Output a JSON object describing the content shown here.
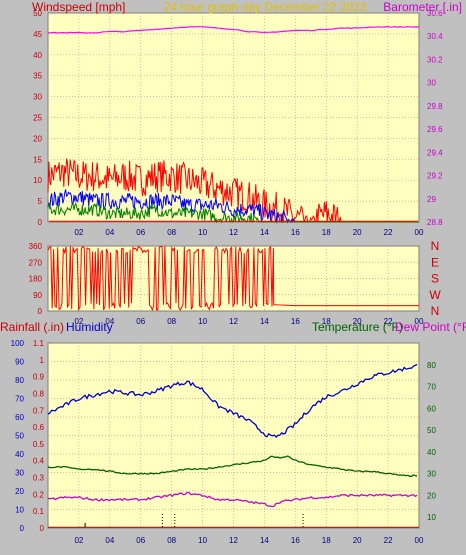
{
  "header": {
    "left": "Windspeed [mph]",
    "center": "24 hour graph day   December 22 2023",
    "right": "Barometer [.in]"
  },
  "colors": {
    "background": "#c0c0c0",
    "plot_bg": "#ffffc0",
    "grid": "#ff9090",
    "wind_gust": "#ff0000",
    "wind_avg": "#0000ff",
    "wind_low": "#008000",
    "barometer": "#ff00ff",
    "direction": "#ff0000",
    "humidity": "#0000cc",
    "temperature": "#006400",
    "dew_point": "#cc00cc",
    "rain": "#cc0000"
  },
  "chart_data": [
    {
      "type": "line",
      "title": "24 hour graph day   December 22 2023",
      "xlabel": "",
      "ylabel": "Windspeed [mph]",
      "y2label": "Barometer [.in]",
      "x_ticks": [
        "02",
        "04",
        "06",
        "08",
        "10",
        "12",
        "14",
        "16",
        "18",
        "20",
        "22",
        "00"
      ],
      "ylim": [
        0,
        50
      ],
      "y_ticks": [
        0,
        5,
        10,
        15,
        20,
        25,
        30,
        35,
        40,
        45,
        50
      ],
      "y2lim": [
        28.8,
        30.6
      ],
      "y2_ticks": [
        "28.8",
        "29",
        "29.2",
        "29.4",
        "29.6",
        "29.8",
        "30",
        "30.2",
        "30.4",
        "30.6"
      ],
      "series": [
        {
          "name": "Barometer",
          "axis": "right",
          "x": [
            0,
            1,
            2,
            3,
            4,
            5,
            6,
            7,
            8,
            9,
            10,
            11,
            12,
            13,
            14,
            15,
            16,
            17,
            18,
            19,
            20,
            21,
            22,
            23,
            24
          ],
          "values": [
            30.43,
            30.43,
            30.43,
            30.43,
            30.44,
            30.44,
            30.45,
            30.46,
            30.47,
            30.48,
            30.48,
            30.47,
            30.46,
            30.44,
            30.43,
            30.44,
            30.45,
            30.45,
            30.46,
            30.47,
            30.47,
            30.48,
            30.48,
            30.48,
            30.48
          ]
        },
        {
          "name": "Wind gust",
          "axis": "left",
          "x": [
            0,
            1,
            2,
            3,
            4,
            5,
            6,
            7,
            8,
            9,
            10,
            11,
            12,
            13,
            14,
            15,
            16,
            17,
            18,
            19,
            20,
            21,
            22,
            23,
            24
          ],
          "values": [
            11,
            12,
            11,
            11,
            10,
            11,
            10,
            11,
            11,
            10,
            9,
            8,
            7,
            6,
            4,
            3,
            1,
            0,
            2,
            0,
            0,
            0,
            0,
            0,
            0
          ]
        },
        {
          "name": "Wind average",
          "axis": "left",
          "x": [
            0,
            1,
            2,
            3,
            4,
            5,
            6,
            7,
            8,
            9,
            10,
            11,
            12,
            13,
            14,
            15,
            16,
            17,
            18,
            19,
            20,
            21,
            22,
            23,
            24
          ],
          "values": [
            5,
            6,
            6,
            5,
            5,
            5,
            5,
            5,
            5,
            4,
            4,
            4,
            3,
            3,
            2,
            1,
            0,
            0,
            0,
            0,
            0,
            0,
            0,
            0,
            0
          ]
        },
        {
          "name": "Wind low",
          "axis": "left",
          "x": [
            0,
            1,
            2,
            3,
            4,
            5,
            6,
            7,
            8,
            9,
            10,
            11,
            12,
            13,
            14,
            15,
            16,
            17,
            18,
            19,
            20,
            21,
            22,
            23,
            24
          ],
          "values": [
            3,
            3,
            3,
            3,
            2,
            2,
            2,
            3,
            2,
            2,
            2,
            1,
            1,
            1,
            0,
            0,
            0,
            0,
            0,
            0,
            0,
            0,
            0,
            0,
            0
          ]
        }
      ]
    },
    {
      "type": "line",
      "ylim": [
        0,
        360
      ],
      "y_ticks": [
        0,
        90,
        180,
        270,
        360
      ],
      "y2_ticks": [
        "N",
        "W",
        "S",
        "E",
        "N"
      ],
      "x_ticks": [
        "02",
        "04",
        "06",
        "08",
        "10",
        "12",
        "14",
        "16",
        "18",
        "20",
        "22",
        "00"
      ],
      "series": [
        {
          "name": "Wind direction",
          "x": [
            0,
            0.5,
            1,
            1.5,
            2,
            2.5,
            3,
            3.5,
            4,
            4.5,
            5,
            5.5,
            6,
            6.5,
            7,
            7.5,
            8,
            8.5,
            9,
            9.5,
            10,
            10.5,
            11,
            11.5,
            12,
            12.5,
            13,
            13.5,
            14,
            14.3,
            14.6,
            16,
            24
          ],
          "values": [
            20,
            355,
            15,
            350,
            25,
            345,
            10,
            360,
            30,
            340,
            20,
            355,
            15,
            350,
            25,
            345,
            10,
            360,
            30,
            340,
            20,
            355,
            15,
            350,
            25,
            345,
            10,
            360,
            30,
            355,
            35,
            30,
            30
          ]
        }
      ]
    },
    {
      "type": "line",
      "ylabel": "Rainfall (.in)",
      "ylabel2": "Humidity",
      "y2label": "Temperature (°F)",
      "y2label2": "Dew Point (°F)",
      "x_ticks": [
        "02",
        "04",
        "06",
        "08",
        "10",
        "12",
        "14",
        "16",
        "18",
        "20",
        "22",
        "00"
      ],
      "rain_lim": [
        0,
        1.1
      ],
      "rain_ticks": [
        "0",
        "0.1",
        "0.2",
        "0.3",
        "0.4",
        "0.5",
        "0.6",
        "0.7",
        "0.8",
        "0.9",
        "1",
        "1.1"
      ],
      "humidity_lim": [
        0,
        100
      ],
      "humidity_ticks": [
        "0",
        "10",
        "20",
        "30",
        "40",
        "50",
        "60",
        "70",
        "80",
        "90",
        "100"
      ],
      "temp_lim": [
        5,
        90
      ],
      "temp_ticks": [
        "10",
        "20",
        "30",
        "40",
        "50",
        "60",
        "70",
        "80"
      ],
      "series": [
        {
          "name": "Humidity",
          "axis": "humidity",
          "x": [
            0,
            1,
            2,
            3,
            4,
            5,
            6,
            7,
            8,
            9,
            10,
            11,
            12,
            13,
            14,
            14.5,
            15,
            16,
            17,
            18,
            19,
            20,
            21,
            22,
            23,
            24
          ],
          "values": [
            62,
            66,
            70,
            72,
            74,
            73,
            72,
            74,
            77,
            79,
            75,
            66,
            62,
            58,
            51,
            49,
            50,
            56,
            65,
            71,
            74,
            78,
            82,
            84,
            86,
            88
          ]
        },
        {
          "name": "Temperature",
          "axis": "temp",
          "x": [
            0,
            1,
            2,
            3,
            4,
            5,
            6,
            7,
            8,
            9,
            10,
            11,
            12,
            13,
            14,
            14.5,
            15,
            15.5,
            16,
            17,
            18,
            19,
            20,
            21,
            22,
            23,
            24
          ],
          "values": [
            33,
            33,
            32,
            32,
            31,
            30,
            30,
            30,
            31,
            32,
            32,
            33,
            34,
            35,
            36,
            38,
            37,
            38,
            36,
            34,
            33,
            32,
            31,
            31,
            30,
            29,
            29
          ]
        },
        {
          "name": "Dew Point",
          "axis": "temp",
          "x": [
            0,
            1,
            2,
            3,
            4,
            5,
            6,
            7,
            8,
            9,
            10,
            11,
            12,
            13,
            14,
            14.5,
            15,
            16,
            17,
            18,
            19,
            20,
            21,
            22,
            23,
            24
          ],
          "values": [
            18,
            19,
            19,
            18,
            18,
            18,
            18,
            19,
            20,
            21,
            20,
            18,
            18,
            17,
            16,
            15,
            17,
            18,
            19,
            19,
            20,
            20,
            20,
            20,
            20,
            20
          ]
        },
        {
          "name": "Rainfall",
          "axis": "rain",
          "x": [
            0,
            24
          ],
          "values": [
            0,
            0
          ]
        }
      ]
    }
  ]
}
